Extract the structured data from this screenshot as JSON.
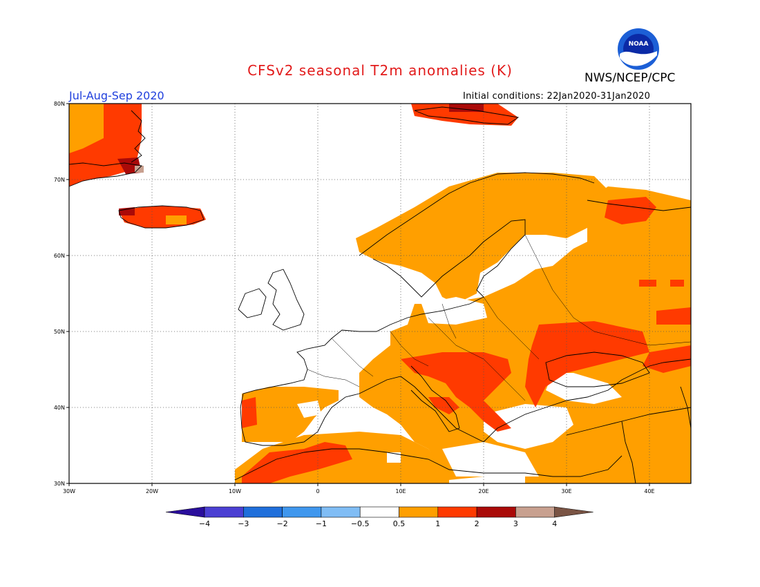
{
  "header": {
    "title": "CFSv2 seasonal T2m anomalies (K)",
    "agency": "NWS/NCEP/CPC",
    "period": "Jul-Aug-Sep 2020",
    "initial_conditions": "Initial conditions: 22Jan2020-31Jan2020",
    "logo_text": "NOAA"
  },
  "map": {
    "lon_range": [
      -30,
      45
    ],
    "lat_range": [
      30,
      80
    ],
    "lon_labels": [
      "30W",
      "20W",
      "10W",
      "0",
      "10E",
      "20E",
      "30E",
      "40E"
    ],
    "lat_labels": [
      "30N",
      "40N",
      "50N",
      "60N",
      "70N",
      "80N"
    ]
  },
  "colorbar": {
    "tick_labels": [
      "-4",
      "-3",
      "-2",
      "-1",
      "-0.5",
      "0.5",
      "1",
      "2",
      "3",
      "4"
    ],
    "colors": [
      "#2a0e9c",
      "#4b3fd3",
      "#1f6fdb",
      "#3f97ee",
      "#80bdf5",
      "#ffffff",
      "#ff9f00",
      "#ff3a00",
      "#aa0a08",
      "#c8a08f",
      "#7a5444"
    ]
  }
}
